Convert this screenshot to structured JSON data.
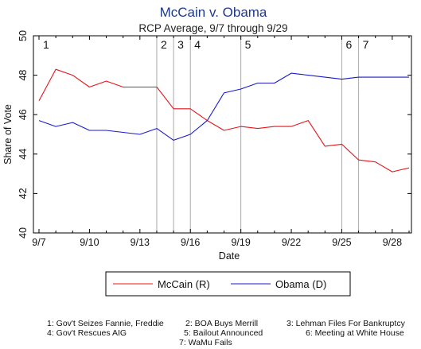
{
  "chart_data": {
    "type": "line",
    "title": "McCain v. Obama",
    "subtitle": "RCP Average, 9/7 through 9/29",
    "xlabel": "Date",
    "ylabel": "Share of Vote",
    "ylim": [
      40,
      50
    ],
    "yticks": [
      "40",
      "42",
      "44",
      "46",
      "48",
      "50"
    ],
    "xlim": [
      "9/7",
      "9/29"
    ],
    "xticks": [
      "9/7",
      "9/10",
      "9/13",
      "9/16",
      "9/19",
      "9/22",
      "9/25",
      "9/28"
    ],
    "x": [
      "9/7",
      "9/8",
      "9/9",
      "9/10",
      "9/11",
      "9/12",
      "9/13",
      "9/14",
      "9/15",
      "9/16",
      "9/17",
      "9/18",
      "9/19",
      "9/20",
      "9/21",
      "9/22",
      "9/23",
      "9/24",
      "9/25",
      "9/26",
      "9/27",
      "9/28",
      "9/29"
    ],
    "series": [
      {
        "name": "McCain (R)",
        "color": "#e8141a",
        "values": [
          46.7,
          48.3,
          48.0,
          47.4,
          47.7,
          47.4,
          47.4,
          47.4,
          46.3,
          46.3,
          45.7,
          45.2,
          45.4,
          45.3,
          45.4,
          45.4,
          45.7,
          44.4,
          44.5,
          43.7,
          43.6,
          43.1,
          43.3
        ]
      },
      {
        "name": "Obama (D)",
        "color": "#1a1acc",
        "values": [
          45.7,
          45.4,
          45.6,
          45.2,
          45.2,
          45.1,
          45.0,
          45.3,
          44.7,
          45.0,
          45.7,
          47.1,
          47.3,
          47.6,
          47.6,
          48.1,
          48.0,
          47.9,
          47.8,
          47.9,
          47.9,
          47.9,
          47.9
        ]
      }
    ],
    "events": [
      {
        "label": "1",
        "date": "9/7"
      },
      {
        "label": "2",
        "date": "9/14"
      },
      {
        "label": "3",
        "date": "9/15"
      },
      {
        "label": "4",
        "date": "9/16"
      },
      {
        "label": "5",
        "date": "9/19"
      },
      {
        "label": "6",
        "date": "9/25"
      },
      {
        "label": "7",
        "date": "9/26"
      }
    ],
    "legend_position": "bottom",
    "notes": [
      "1: Gov't Seizes Fannie, Freddie",
      "2: BOA Buys Merrill",
      "3: Lehman Files For Bankruptcy",
      "4: Gov't Rescues AIG",
      "5: Bailout Announced",
      "6: Meeting at White House",
      "7: WaMu Fails"
    ]
  }
}
